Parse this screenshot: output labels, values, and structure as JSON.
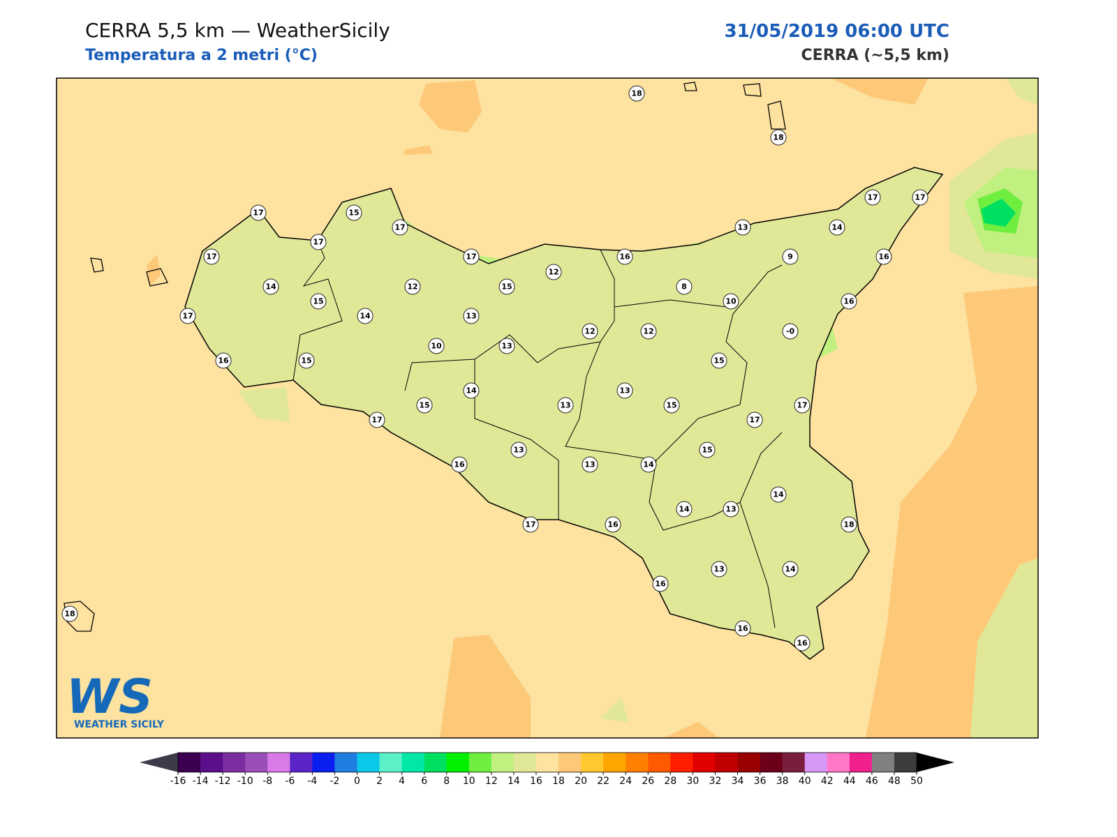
{
  "header": {
    "title": "CERRA 5,5 km — WeatherSicily",
    "subtitle": "Temperatura a 2 metri (°C)",
    "datetime": "31/05/2019 06:00 UTC",
    "source": "CERRA (~5,5 km)"
  },
  "logo": {
    "mark": "WS",
    "caption": "WEATHER SICILY"
  },
  "stations": [
    18,
    18,
    17,
    15,
    17,
    17,
    17,
    17,
    16,
    13,
    14,
    17,
    17,
    16,
    9,
    14,
    12,
    15,
    12,
    8,
    10,
    16,
    15,
    17,
    14,
    13,
    12,
    12,
    {
      "value": 0,
      "label": "-0"
    },
    10,
    13,
    16,
    15,
    15,
    14,
    13,
    15,
    13,
    15,
    17,
    17,
    17,
    13,
    15,
    16,
    13,
    14,
    14,
    14,
    13,
    17,
    16,
    18,
    13,
    14,
    16,
    18,
    16,
    16
  ],
  "colorbar": {
    "ticks": [
      -16,
      -14,
      -12,
      -10,
      -8,
      -6,
      -4,
      -2,
      0,
      2,
      4,
      6,
      8,
      10,
      12,
      14,
      16,
      18,
      20,
      22,
      24,
      26,
      28,
      30,
      32,
      34,
      36,
      38,
      40,
      42,
      44,
      46,
      48,
      50
    ],
    "colors": [
      "#3d0050",
      "#5c0f8a",
      "#7a2ea0",
      "#9a4fb8",
      "#d97ae8",
      "#5b24c8",
      "#0a1ef0",
      "#1e7fe0",
      "#0cc8e8",
      "#5cf0c8",
      "#00e8a8",
      "#00e060",
      "#00f000",
      "#70ee40",
      "#c0f080",
      "#e0e898",
      "#fde2a0",
      "#fdc878",
      "#ffc830",
      "#ffa500",
      "#ff8000",
      "#ff5a00",
      "#ff1e00",
      "#e00000",
      "#c00000",
      "#990000",
      "#6b0018",
      "#7a1e40",
      "#d898f8",
      "#ff78c8",
      "#f0208c",
      "#808080",
      "#3c3c3c"
    ],
    "under": "#3b3b4a",
    "over": "#000000"
  }
}
